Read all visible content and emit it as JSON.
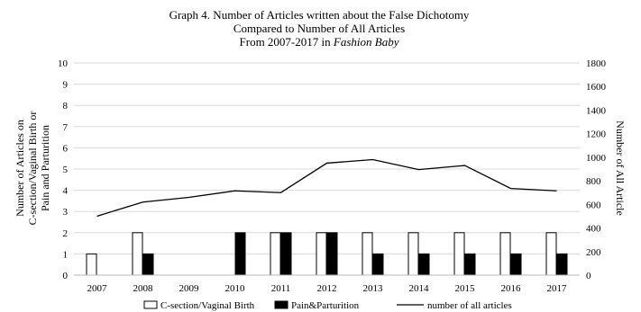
{
  "chart_data": {
    "type": "bar",
    "title_lines": [
      "Graph 4. Number of Articles written about the False Dichotomy",
      "Compared to Number of All Articles",
      "From 2007-2017 in "
    ],
    "title_italic": "Fashion Baby",
    "categories": [
      "2007",
      "2008",
      "2009",
      "2010",
      "2011",
      "2012",
      "2013",
      "2014",
      "2015",
      "2016",
      "2017"
    ],
    "series": [
      {
        "name": "C-section/Vaginal Birth",
        "type": "bar",
        "axis": "left",
        "color": "#ffffff",
        "values": [
          1,
          2,
          0,
          0,
          2,
          2,
          2,
          2,
          2,
          2,
          2
        ]
      },
      {
        "name": "Pain&Parturition",
        "type": "bar",
        "axis": "left",
        "color": "#000000",
        "values": [
          0,
          1,
          0,
          2,
          2,
          2,
          1,
          1,
          1,
          1,
          1
        ]
      },
      {
        "name": "number of all articles",
        "type": "line",
        "axis": "right",
        "color": "#000000",
        "values": [
          500,
          620,
          660,
          715,
          700,
          950,
          980,
          895,
          930,
          735,
          715
        ]
      }
    ],
    "ylabel_left_lines": [
      "Number of Articles on",
      "C-section/Vaginal Birth or",
      "Pain and Parturition"
    ],
    "ylabel_right": "Number of All Article",
    "ylim_left": [
      0,
      10
    ],
    "yticks_left": [
      "0",
      "1",
      "2",
      "3",
      "4",
      "5",
      "6",
      "7",
      "8",
      "9",
      "10"
    ],
    "ylim_right": [
      0,
      1800
    ],
    "yticks_right": [
      "0",
      "200",
      "400",
      "600",
      "800",
      "1000",
      "1200",
      "1400",
      "1600",
      "1800"
    ],
    "grid": true,
    "legend_position": "bottom"
  }
}
